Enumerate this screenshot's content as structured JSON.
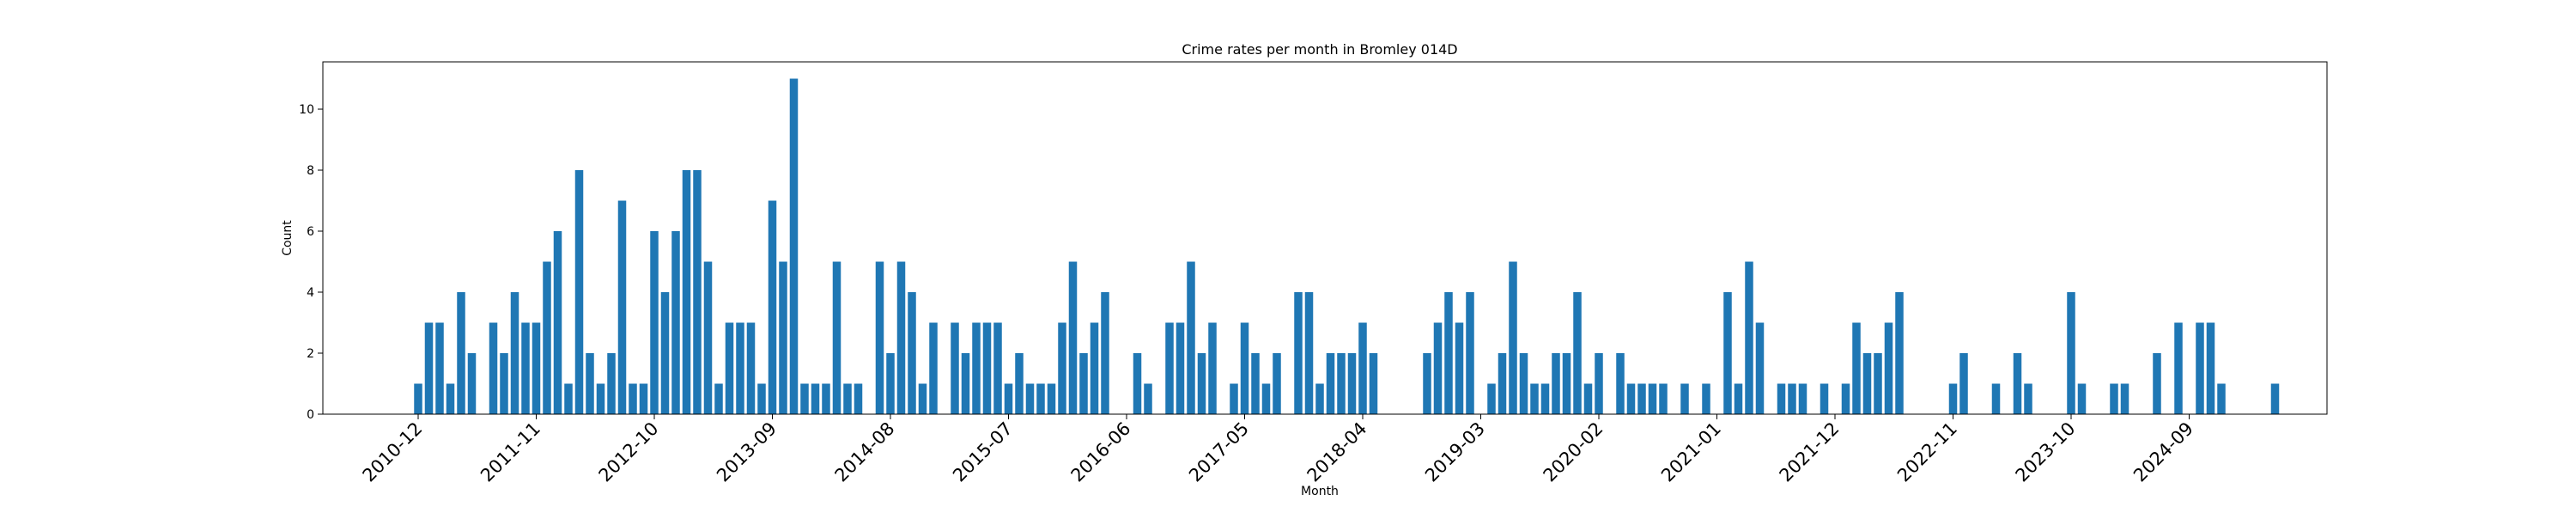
{
  "chart_data": {
    "type": "bar",
    "title": "Crime rates per month in Bromley 014D",
    "xlabel": "Month",
    "ylabel": "Count",
    "ylim": [
      0,
      11.55
    ],
    "yticks": [
      0,
      2,
      4,
      6,
      8,
      10
    ],
    "grid": false,
    "legend": "none",
    "bar_color": "#1f77b4",
    "start_month": "2010-12",
    "xtick_labels": [
      "2010-12",
      "2011-11",
      "2012-10",
      "2013-09",
      "2014-08",
      "2015-07",
      "2016-06",
      "2017-05",
      "2018-04",
      "2019-03",
      "2020-02",
      "2021-01",
      "2021-12",
      "2022-11",
      "2023-10",
      "2024-09"
    ],
    "values": [
      1,
      3,
      3,
      1,
      4,
      2,
      0,
      3,
      2,
      4,
      3,
      3,
      5,
      6,
      1,
      8,
      2,
      1,
      2,
      7,
      1,
      1,
      6,
      4,
      6,
      8,
      8,
      5,
      1,
      3,
      3,
      3,
      1,
      7,
      5,
      11,
      1,
      1,
      1,
      5,
      1,
      1,
      0,
      5,
      2,
      5,
      4,
      1,
      3,
      0,
      3,
      2,
      3,
      3,
      3,
      1,
      2,
      1,
      1,
      1,
      3,
      5,
      2,
      3,
      4,
      0,
      0,
      2,
      1,
      0,
      3,
      3,
      5,
      2,
      3,
      0,
      1,
      3,
      2,
      1,
      2,
      0,
      4,
      4,
      1,
      2,
      2,
      2,
      3,
      2,
      0,
      0,
      0,
      0,
      2,
      3,
      4,
      3,
      4,
      0,
      1,
      2,
      5,
      2,
      1,
      1,
      2,
      2,
      4,
      1,
      2,
      0,
      2,
      1,
      1,
      1,
      1,
      0,
      1,
      0,
      1,
      0,
      4,
      1,
      5,
      3,
      0,
      1,
      1,
      1,
      0,
      1,
      0,
      1,
      3,
      2,
      2,
      3,
      4,
      0,
      0,
      0,
      0,
      1,
      2,
      0,
      0,
      1,
      0,
      2,
      1,
      0,
      0,
      0,
      4,
      1,
      0,
      0,
      1,
      1,
      0,
      0,
      2,
      0,
      3,
      0,
      3,
      3,
      1,
      0,
      0,
      0,
      0,
      1
    ]
  }
}
